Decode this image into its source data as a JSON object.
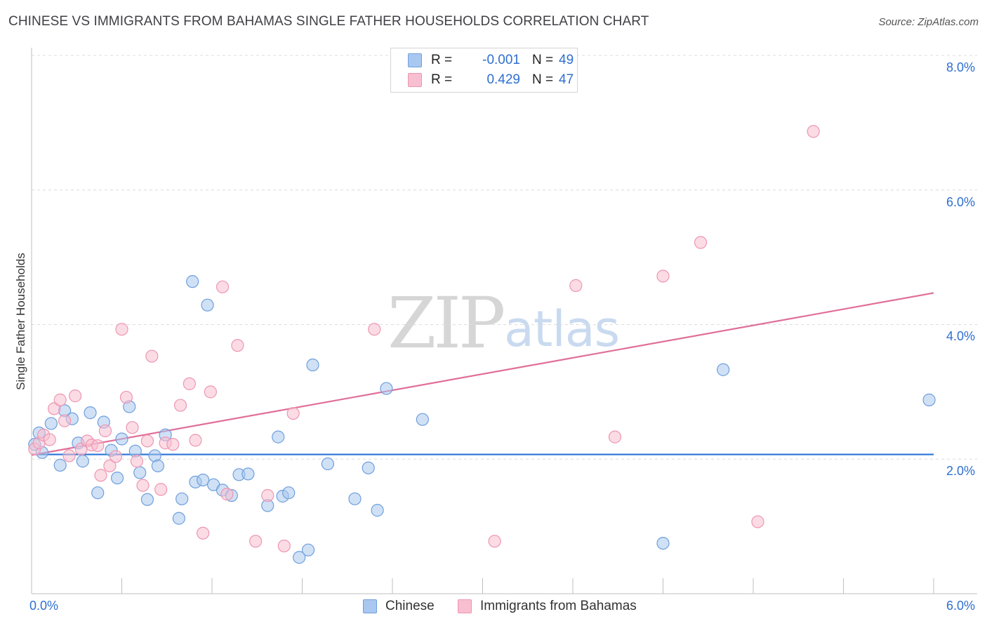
{
  "title": "CHINESE VS IMMIGRANTS FROM BAHAMAS SINGLE FATHER HOUSEHOLDS CORRELATION CHART",
  "source": "Source: ZipAtlas.com",
  "watermark": {
    "zip": "ZIP",
    "atlas": "atlas"
  },
  "colors": {
    "blue_fill": "#a9c8ef",
    "blue_stroke": "#6f9fdc",
    "blue_line": "#2a73d6",
    "pink_fill": "#f7bfd0",
    "pink_stroke": "#ee95b2",
    "pink_line": "#e06e98",
    "accent_text": "#2f6fd0",
    "grid": "#dcdcdc"
  },
  "legend": {
    "rows": [
      {
        "r_label": "R =",
        "r_value": "-0.001",
        "n_label": "N =",
        "n_value": "49"
      },
      {
        "r_label": "R =",
        "r_value": "0.429",
        "n_label": "N =",
        "n_value": "47"
      }
    ]
  },
  "bottom_legend": {
    "series1": "Chinese",
    "series2": "Immigrants from Bahamas"
  },
  "x_axis": {
    "min_label": "0.0%",
    "max_label": "6.0%"
  },
  "y_axis": {
    "label": "Single Father Households",
    "ticks": [
      "8.0%",
      "6.0%",
      "4.0%",
      "2.0%"
    ]
  },
  "chart_data": {
    "type": "scatter",
    "title": "CHINESE VS IMMIGRANTS FROM BAHAMAS SINGLE FATHER HOUSEHOLDS CORRELATION CHART",
    "xlabel": "",
    "ylabel": "Single Father Households",
    "xlim": [
      0,
      6
    ],
    "ylim": [
      0,
      8
    ],
    "yticks": [
      2,
      4,
      6,
      8
    ],
    "legend_position": "top-center",
    "series": [
      {
        "name": "Chinese",
        "r": -0.001,
        "n": 49,
        "trend": {
          "x": [
            0,
            6
          ],
          "y": [
            2.07,
            2.07
          ]
        },
        "points": [
          [
            0.02,
            2.22
          ],
          [
            0.05,
            2.39
          ],
          [
            0.07,
            2.1
          ],
          [
            0.13,
            2.53
          ],
          [
            0.19,
            1.91
          ],
          [
            0.22,
            2.72
          ],
          [
            0.27,
            2.6
          ],
          [
            0.31,
            2.24
          ],
          [
            0.34,
            1.97
          ],
          [
            0.39,
            2.69
          ],
          [
            0.44,
            1.5
          ],
          [
            0.48,
            2.55
          ],
          [
            0.53,
            2.13
          ],
          [
            0.57,
            1.72
          ],
          [
            0.6,
            2.3
          ],
          [
            0.65,
            2.78
          ],
          [
            0.69,
            2.12
          ],
          [
            0.72,
            1.8
          ],
          [
            0.77,
            1.4
          ],
          [
            0.82,
            2.05
          ],
          [
            0.84,
            1.9
          ],
          [
            0.89,
            2.36
          ],
          [
            0.98,
            1.12
          ],
          [
            1.0,
            1.41
          ],
          [
            1.07,
            4.64
          ],
          [
            1.09,
            1.66
          ],
          [
            1.14,
            1.69
          ],
          [
            1.17,
            4.29
          ],
          [
            1.21,
            1.62
          ],
          [
            1.27,
            1.54
          ],
          [
            1.33,
            1.46
          ],
          [
            1.38,
            1.77
          ],
          [
            1.44,
            1.78
          ],
          [
            1.57,
            1.31
          ],
          [
            1.64,
            2.33
          ],
          [
            1.67,
            1.45
          ],
          [
            1.71,
            1.5
          ],
          [
            1.78,
            0.54
          ],
          [
            1.84,
            0.65
          ],
          [
            1.87,
            3.4
          ],
          [
            1.97,
            1.93
          ],
          [
            2.15,
            1.41
          ],
          [
            2.24,
            1.87
          ],
          [
            2.3,
            1.24
          ],
          [
            2.36,
            3.05
          ],
          [
            2.6,
            2.59
          ],
          [
            4.2,
            0.75
          ],
          [
            4.6,
            3.33
          ],
          [
            5.97,
            2.88
          ]
        ]
      },
      {
        "name": "Immigrants from Bahamas",
        "r": 0.429,
        "n": 47,
        "trend": {
          "x": [
            0,
            6
          ],
          "y": [
            2.06,
            4.47
          ]
        },
        "points": [
          [
            0.02,
            2.15
          ],
          [
            0.05,
            2.24
          ],
          [
            0.08,
            2.36
          ],
          [
            0.12,
            2.29
          ],
          [
            0.15,
            2.75
          ],
          [
            0.19,
            2.88
          ],
          [
            0.22,
            2.57
          ],
          [
            0.25,
            2.05
          ],
          [
            0.29,
            2.94
          ],
          [
            0.33,
            2.15
          ],
          [
            0.37,
            2.27
          ],
          [
            0.4,
            2.21
          ],
          [
            0.44,
            2.2
          ],
          [
            0.46,
            1.76
          ],
          [
            0.49,
            2.42
          ],
          [
            0.52,
            1.9
          ],
          [
            0.56,
            2.04
          ],
          [
            0.6,
            3.93
          ],
          [
            0.63,
            2.92
          ],
          [
            0.67,
            2.47
          ],
          [
            0.7,
            1.97
          ],
          [
            0.74,
            1.61
          ],
          [
            0.77,
            2.27
          ],
          [
            0.8,
            3.53
          ],
          [
            0.86,
            1.55
          ],
          [
            0.89,
            2.24
          ],
          [
            0.94,
            2.22
          ],
          [
            0.99,
            2.8
          ],
          [
            1.05,
            3.12
          ],
          [
            1.09,
            2.28
          ],
          [
            1.14,
            0.9
          ],
          [
            1.19,
            3.0
          ],
          [
            1.27,
            4.56
          ],
          [
            1.3,
            1.48
          ],
          [
            1.37,
            3.69
          ],
          [
            1.49,
            0.78
          ],
          [
            1.57,
            1.46
          ],
          [
            1.68,
            0.71
          ],
          [
            1.74,
            2.68
          ],
          [
            2.28,
            3.93
          ],
          [
            3.08,
            0.78
          ],
          [
            3.62,
            4.58
          ],
          [
            3.88,
            2.33
          ],
          [
            4.2,
            4.72
          ],
          [
            4.45,
            5.22
          ],
          [
            4.83,
            1.07
          ],
          [
            5.2,
            6.87
          ]
        ]
      }
    ]
  }
}
